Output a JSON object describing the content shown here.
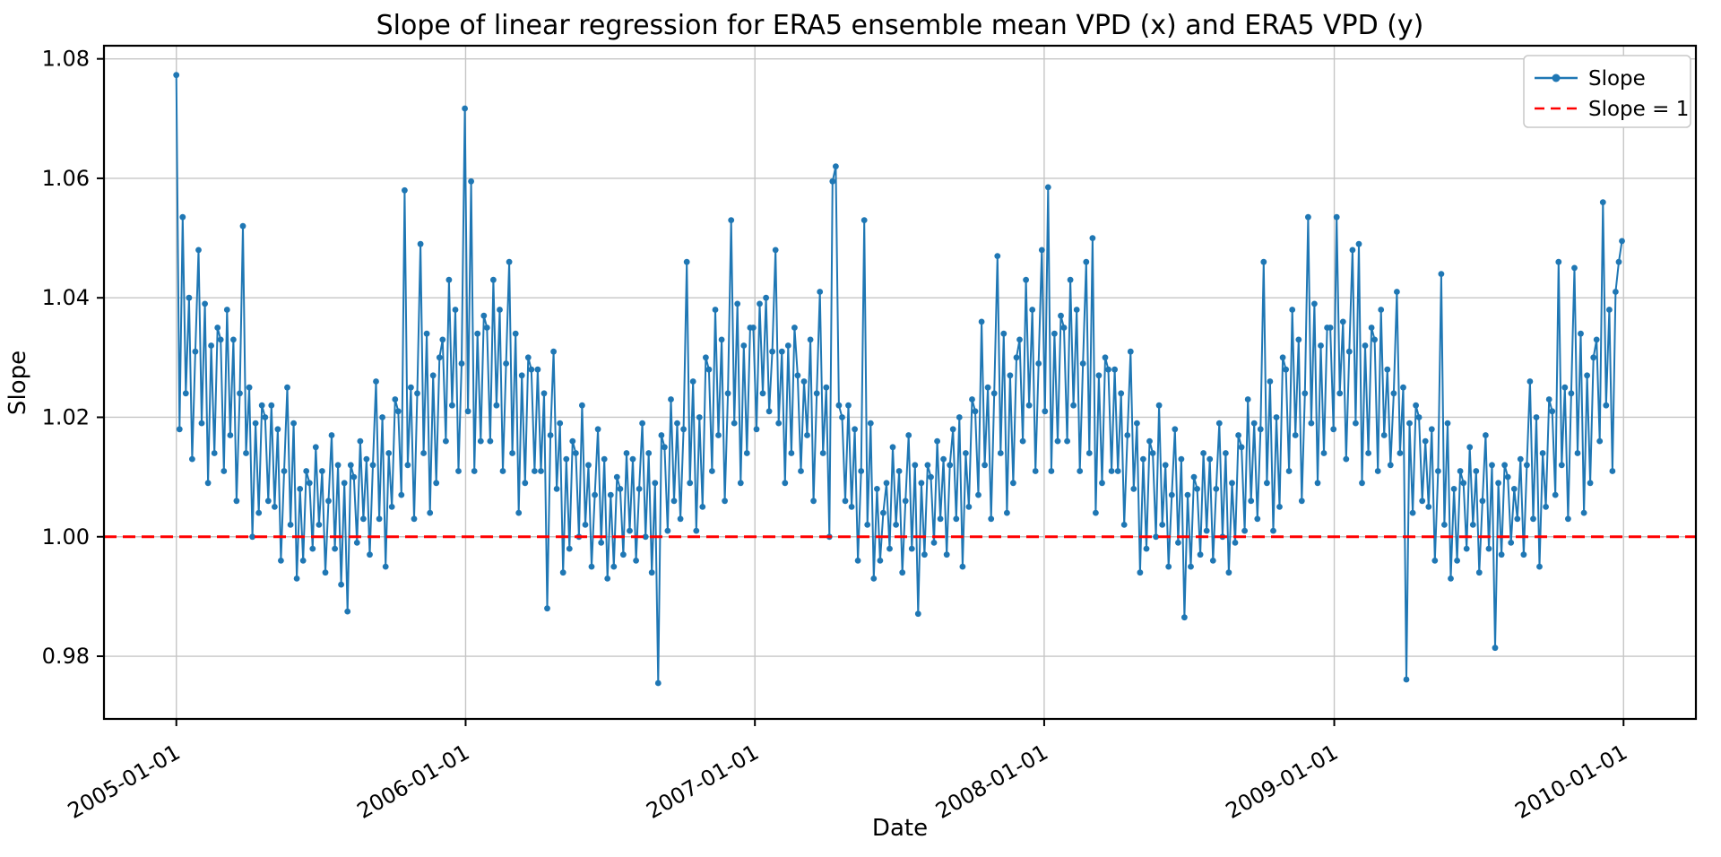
{
  "title": "Slope of linear regression for ERA5 ensemble mean VPD (x) and ERA5 VPD (y)",
  "axes": {
    "xlabel": "Date",
    "ylabel": "Slope"
  },
  "legend": {
    "position": "upper right",
    "items": [
      {
        "label": "Slope",
        "color": "#1f77b4",
        "style": "line-marker"
      },
      {
        "label": "Slope = 1",
        "color": "#ff0000",
        "style": "dashed"
      }
    ]
  },
  "colors": {
    "series": "#1f77b4",
    "reference": "#ff0000",
    "grid": "#c6c6c6",
    "spine": "#000000",
    "legend_border": "#c8c8c8",
    "background": "#ffffff"
  },
  "chart_data": {
    "type": "line",
    "title": "Slope of linear regression for ERA5 ensemble mean VPD (x) and ERA5 VPD (y)",
    "xlabel": "Date",
    "ylabel": "Slope",
    "grid": true,
    "legend_position": "upper right",
    "x_tick_labels": [
      "2005-01-01",
      "2006-01-01",
      "2007-01-01",
      "2008-01-01",
      "2009-01-01",
      "2010-01-01"
    ],
    "x_tick_days": [
      0,
      365,
      730,
      1095,
      1461,
      1826
    ],
    "x_tick_rotation_deg": 30,
    "xlim_days": [
      -91.3,
      1917.3
    ],
    "y_ticks": [
      0.98,
      1.0,
      1.02,
      1.04,
      1.06,
      1.08
    ],
    "y_tick_labels": [
      "0.98",
      "1.00",
      "1.02",
      "1.04",
      "1.06",
      "1.08"
    ],
    "ylim": [
      0.9695,
      1.0822
    ],
    "reference_line": {
      "name": "Slope = 1",
      "y": 1.0,
      "color": "#ff0000",
      "style": "dashed"
    },
    "observed_extremes": {
      "max": 1.0773,
      "max_near": "2005-01-01",
      "min": 0.9755,
      "min_near": "2006-09"
    },
    "series": [
      {
        "name": "Slope",
        "color": "#1f77b4",
        "marker": "circle",
        "start_date": "2005-01-01",
        "step_days": 4,
        "values": [
          1.0773,
          1.018,
          1.0535,
          1.024,
          1.04,
          1.013,
          1.031,
          1.048,
          1.019,
          1.039,
          1.009,
          1.032,
          1.014,
          1.035,
          1.033,
          1.011,
          1.038,
          1.017,
          1.033,
          1.006,
          1.024,
          1.052,
          1.014,
          1.025,
          1.0,
          1.019,
          1.004,
          1.022,
          1.02,
          1.006,
          1.022,
          1.005,
          1.018,
          0.996,
          1.011,
          1.025,
          1.002,
          1.019,
          0.993,
          1.008,
          0.996,
          1.011,
          1.009,
          0.998,
          1.015,
          1.002,
          1.011,
          0.994,
          1.006,
          1.017,
          0.998,
          1.012,
          0.992,
          1.009,
          0.9875,
          1.012,
          1.01,
          0.999,
          1.016,
          1.003,
          1.013,
          0.997,
          1.012,
          1.026,
          1.003,
          1.02,
          0.995,
          1.014,
          1.005,
          1.023,
          1.021,
          1.007,
          1.058,
          1.012,
          1.025,
          1.003,
          1.024,
          1.049,
          1.014,
          1.034,
          1.004,
          1.027,
          1.009,
          1.03,
          1.033,
          1.016,
          1.043,
          1.022,
          1.038,
          1.011,
          1.029,
          1.0717,
          1.021,
          1.0595,
          1.011,
          1.034,
          1.016,
          1.037,
          1.035,
          1.016,
          1.043,
          1.022,
          1.038,
          1.011,
          1.029,
          1.046,
          1.014,
          1.034,
          1.004,
          1.027,
          1.009,
          1.03,
          1.028,
          1.011,
          1.028,
          1.011,
          1.024,
          0.988,
          1.017,
          1.031,
          1.008,
          1.019,
          0.994,
          1.013,
          0.998,
          1.016,
          1.014,
          1.0,
          1.022,
          1.002,
          1.012,
          0.995,
          1.007,
          1.018,
          0.999,
          1.013,
          0.993,
          1.007,
          0.995,
          1.01,
          1.008,
          0.997,
          1.014,
          1.001,
          1.013,
          0.996,
          1.008,
          1.019,
          1.0,
          1.014,
          0.994,
          1.009,
          0.9755,
          1.017,
          1.015,
          1.001,
          1.023,
          1.006,
          1.019,
          1.003,
          1.018,
          1.046,
          1.009,
          1.026,
          1.001,
          1.02,
          1.005,
          1.03,
          1.028,
          1.011,
          1.038,
          1.017,
          1.033,
          1.006,
          1.024,
          1.053,
          1.019,
          1.039,
          1.009,
          1.032,
          1.014,
          1.035,
          1.035,
          1.018,
          1.039,
          1.024,
          1.04,
          1.021,
          1.031,
          1.048,
          1.019,
          1.031,
          1.009,
          1.032,
          1.014,
          1.035,
          1.027,
          1.011,
          1.026,
          1.017,
          1.033,
          1.006,
          1.024,
          1.041,
          1.014,
          1.025,
          1.0,
          1.0595,
          1.062,
          1.022,
          1.02,
          1.006,
          1.022,
          1.005,
          1.018,
          0.996,
          1.011,
          1.053,
          1.002,
          1.019,
          0.993,
          1.008,
          0.996,
          1.004,
          1.009,
          0.998,
          1.015,
          1.002,
          1.011,
          0.994,
          1.006,
          1.017,
          0.998,
          1.012,
          0.9871,
          1.009,
          0.997,
          1.012,
          1.01,
          0.999,
          1.016,
          1.003,
          1.013,
          0.997,
          1.012,
          1.018,
          1.003,
          1.02,
          0.995,
          1.014,
          1.005,
          1.023,
          1.021,
          1.007,
          1.036,
          1.012,
          1.025,
          1.003,
          1.024,
          1.047,
          1.014,
          1.034,
          1.004,
          1.027,
          1.009,
          1.03,
          1.033,
          1.016,
          1.043,
          1.022,
          1.038,
          1.011,
          1.029,
          1.048,
          1.021,
          1.0585,
          1.011,
          1.034,
          1.016,
          1.037,
          1.035,
          1.016,
          1.043,
          1.022,
          1.038,
          1.011,
          1.029,
          1.046,
          1.014,
          1.05,
          1.004,
          1.027,
          1.009,
          1.03,
          1.028,
          1.011,
          1.028,
          1.011,
          1.024,
          1.002,
          1.017,
          1.031,
          1.008,
          1.019,
          0.994,
          1.013,
          0.998,
          1.016,
          1.014,
          1.0,
          1.022,
          1.002,
          1.012,
          0.995,
          1.007,
          1.018,
          0.999,
          1.013,
          0.9865,
          1.007,
          0.995,
          1.01,
          1.008,
          0.997,
          1.014,
          1.001,
          1.013,
          0.996,
          1.008,
          1.019,
          1.0,
          1.014,
          0.994,
          1.009,
          0.999,
          1.017,
          1.015,
          1.001,
          1.023,
          1.006,
          1.019,
          1.003,
          1.018,
          1.046,
          1.009,
          1.026,
          1.001,
          1.02,
          1.005,
          1.03,
          1.028,
          1.011,
          1.038,
          1.017,
          1.033,
          1.006,
          1.024,
          1.0535,
          1.019,
          1.039,
          1.009,
          1.032,
          1.014,
          1.035,
          1.035,
          1.018,
          1.0535,
          1.024,
          1.036,
          1.013,
          1.031,
          1.048,
          1.019,
          1.049,
          1.009,
          1.032,
          1.014,
          1.035,
          1.033,
          1.011,
          1.038,
          1.017,
          1.028,
          1.012,
          1.024,
          1.041,
          1.014,
          1.025,
          0.9761,
          1.019,
          1.004,
          1.022,
          1.02,
          1.006,
          1.016,
          1.005,
          1.018,
          0.996,
          1.011,
          1.044,
          1.002,
          1.019,
          0.993,
          1.008,
          0.996,
          1.011,
          1.009,
          0.998,
          1.015,
          1.002,
          1.011,
          0.994,
          1.006,
          1.017,
          0.998,
          1.012,
          0.9814,
          1.009,
          0.997,
          1.012,
          1.01,
          0.999,
          1.008,
          1.003,
          1.013,
          0.997,
          1.012,
          1.026,
          1.003,
          1.02,
          0.995,
          1.014,
          1.005,
          1.023,
          1.021,
          1.007,
          1.046,
          1.012,
          1.025,
          1.003,
          1.024,
          1.045,
          1.014,
          1.034,
          1.004,
          1.027,
          1.009,
          1.03,
          1.033,
          1.016,
          1.056,
          1.022,
          1.038,
          1.011,
          1.041,
          1.046,
          1.0495
        ]
      }
    ]
  }
}
